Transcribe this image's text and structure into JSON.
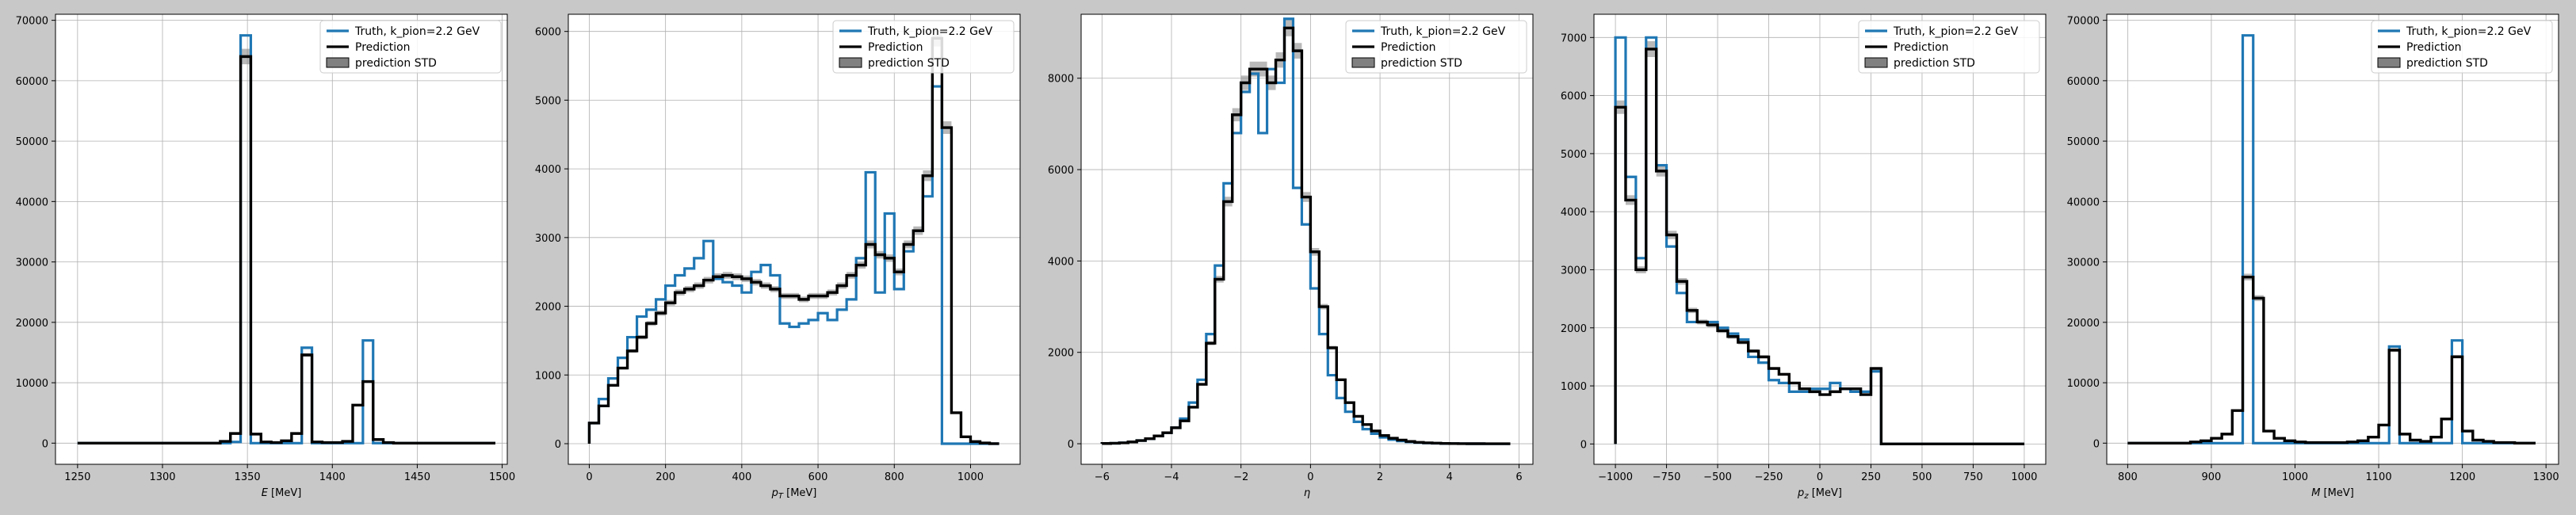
{
  "chart_data": [
    {
      "type": "step-histogram",
      "xlabel": "E [MeV]",
      "xlim": [
        1237,
        1503
      ],
      "ylim": [
        -3500,
        71000
      ],
      "xticks": [
        1250,
        1300,
        1350,
        1400,
        1450,
        1500
      ],
      "yticks": [
        0,
        10000,
        20000,
        30000,
        40000,
        50000,
        60000,
        70000
      ],
      "grid": true,
      "legend_position": "top-right",
      "legend": [
        "Truth, k_pion=2.2 GeV",
        "Prediction",
        "prediction STD"
      ],
      "bin_edges_start": 1250,
      "bin_width": 6,
      "num_bins": 41,
      "series": [
        {
          "name": "Truth, k_pion=2.2 GeV",
          "color": "#1f77b4",
          "values": [
            0,
            0,
            0,
            0,
            0,
            0,
            0,
            0,
            0,
            0,
            0,
            0,
            0,
            0,
            0,
            200,
            67500,
            0,
            0,
            0,
            0,
            0,
            15800,
            0,
            0,
            0,
            0,
            0,
            17000,
            0,
            0,
            0,
            0,
            0,
            0,
            0,
            0,
            0,
            0,
            0,
            0
          ]
        },
        {
          "name": "Prediction",
          "color": "#000000",
          "values": [
            0,
            0,
            0,
            0,
            0,
            0,
            0,
            0,
            0,
            0,
            0,
            0,
            0,
            0,
            300,
            1600,
            64000,
            1500,
            200,
            100,
            400,
            1600,
            14600,
            200,
            100,
            100,
            300,
            6300,
            10200,
            600,
            100,
            0,
            0,
            0,
            0,
            0,
            0,
            0,
            0,
            0,
            0
          ]
        }
      ]
    },
    {
      "type": "step-histogram",
      "xlabel": "p_T [MeV]",
      "xlim": [
        -55,
        1130
      ],
      "ylim": [
        -300,
        6250
      ],
      "xticks": [
        0,
        200,
        400,
        600,
        800,
        1000
      ],
      "yticks": [
        0,
        1000,
        2000,
        3000,
        4000,
        5000,
        6000
      ],
      "grid": true,
      "legend_position": "top-right",
      "legend": [
        "Truth, k_pion=2.2 GeV",
        "Prediction",
        "prediction STD"
      ],
      "bin_edges_start": 0,
      "bin_width": 25,
      "num_bins": 43,
      "series": [
        {
          "name": "Truth, k_pion=2.2 GeV",
          "color": "#1f77b4",
          "values": [
            300,
            650,
            950,
            1250,
            1550,
            1850,
            1950,
            2100,
            2300,
            2450,
            2550,
            2700,
            2950,
            2400,
            2350,
            2300,
            2200,
            2500,
            2600,
            2450,
            1750,
            1700,
            1750,
            1800,
            1900,
            1800,
            1950,
            2100,
            2700,
            3950,
            2200,
            3350,
            2250,
            2800,
            3100,
            3600,
            5200,
            0,
            0,
            0,
            0,
            0,
            0
          ]
        },
        {
          "name": "Prediction",
          "color": "#000000",
          "values": [
            300,
            550,
            850,
            1100,
            1350,
            1550,
            1750,
            1900,
            2050,
            2200,
            2250,
            2300,
            2380,
            2430,
            2450,
            2430,
            2400,
            2350,
            2300,
            2250,
            2150,
            2150,
            2100,
            2150,
            2150,
            2200,
            2300,
            2450,
            2600,
            2900,
            2750,
            2700,
            2500,
            2900,
            3100,
            3900,
            5900,
            4600,
            450,
            100,
            30,
            10,
            0
          ]
        }
      ]
    },
    {
      "type": "step-histogram",
      "xlabel": "η",
      "xlim": [
        -6.6,
        6.4
      ],
      "ylim": [
        -450,
        9400
      ],
      "xticks": [
        -6,
        -4,
        -2,
        0,
        2,
        4,
        6
      ],
      "yticks": [
        0,
        2000,
        4000,
        6000,
        8000
      ],
      "grid": true,
      "legend_position": "top-right",
      "legend": [
        "Truth, k_pion=2.2 GeV",
        "Prediction",
        "prediction STD"
      ],
      "bin_edges_start": -6,
      "bin_width": 0.25,
      "num_bins": 47,
      "series": [
        {
          "name": "Truth, k_pion=2.2 GeV",
          "color": "#1f77b4",
          "values": [
            5,
            10,
            20,
            40,
            70,
            110,
            170,
            240,
            350,
            550,
            900,
            1400,
            2400,
            3900,
            5700,
            6800,
            7700,
            8100,
            6800,
            8200,
            7900,
            9300,
            5600,
            4800,
            3400,
            2400,
            1500,
            1000,
            700,
            480,
            320,
            220,
            140,
            90,
            60,
            40,
            25,
            15,
            10,
            5,
            3,
            2,
            1,
            1,
            0,
            0,
            0
          ]
        },
        {
          "name": "Prediction",
          "color": "#000000",
          "values": [
            5,
            10,
            20,
            40,
            70,
            110,
            170,
            240,
            350,
            500,
            800,
            1300,
            2200,
            3600,
            5300,
            7200,
            7900,
            8200,
            8200,
            7900,
            8400,
            9100,
            8600,
            5400,
            4200,
            3000,
            2100,
            1400,
            900,
            600,
            420,
            280,
            180,
            120,
            80,
            50,
            30,
            20,
            12,
            7,
            4,
            2,
            1,
            1,
            0,
            0,
            0
          ]
        }
      ]
    },
    {
      "type": "step-histogram",
      "xlabel": "p_z [MeV]",
      "xlim": [
        -1105,
        1105
      ],
      "ylim": [
        -350,
        7400
      ],
      "xticks": [
        -1000,
        -750,
        -500,
        -250,
        0,
        250,
        500,
        750,
        1000
      ],
      "yticks": [
        0,
        1000,
        2000,
        3000,
        4000,
        5000,
        6000,
        7000
      ],
      "grid": true,
      "legend_position": "top-right",
      "legend": [
        "Truth, k_pion=2.2 GeV",
        "Prediction",
        "prediction STD"
      ],
      "bin_edges_start": -1000,
      "bin_width": 50,
      "num_bins": 40,
      "series": [
        {
          "name": "Truth, k_pion=2.2 GeV",
          "color": "#1f77b4",
          "values": [
            7000,
            4600,
            3200,
            7000,
            4800,
            3400,
            2600,
            2100,
            2100,
            2100,
            2000,
            1900,
            1800,
            1500,
            1400,
            1100,
            1050,
            900,
            900,
            950,
            950,
            1050,
            950,
            900,
            900,
            1250,
            0,
            0,
            0,
            0,
            0,
            0,
            0,
            0,
            0,
            0,
            0,
            0,
            0,
            0
          ]
        },
        {
          "name": "Prediction",
          "color": "#000000",
          "values": [
            5800,
            4200,
            3000,
            6800,
            4700,
            3600,
            2800,
            2300,
            2100,
            2050,
            1950,
            1850,
            1750,
            1600,
            1500,
            1300,
            1200,
            1050,
            950,
            900,
            850,
            900,
            950,
            950,
            850,
            1300,
            0,
            0,
            0,
            0,
            0,
            0,
            0,
            0,
            0,
            0,
            0,
            0,
            0,
            0
          ]
        }
      ]
    },
    {
      "type": "step-histogram",
      "xlabel": "M [MeV]",
      "xlim": [
        775,
        1315
      ],
      "ylim": [
        -3500,
        71000
      ],
      "xticks": [
        800,
        900,
        1000,
        1100,
        1200,
        1300
      ],
      "yticks": [
        0,
        10000,
        20000,
        30000,
        40000,
        50000,
        60000,
        70000
      ],
      "grid": true,
      "legend_position": "top-right",
      "legend": [
        "Truth, k_pion=2.2 GeV",
        "Prediction",
        "prediction STD"
      ],
      "bin_edges_start": 800,
      "bin_width": 12.5,
      "num_bins": 39,
      "series": [
        {
          "name": "Truth, k_pion=2.2 GeV",
          "color": "#1f77b4",
          "values": [
            0,
            0,
            0,
            0,
            0,
            0,
            0,
            0,
            0,
            0,
            0,
            67500,
            0,
            0,
            0,
            0,
            0,
            0,
            0,
            0,
            0,
            0,
            0,
            0,
            0,
            16000,
            0,
            0,
            0,
            0,
            0,
            17000,
            0,
            0,
            0,
            0,
            0,
            0,
            0
          ]
        },
        {
          "name": "Prediction",
          "color": "#000000",
          "values": [
            0,
            0,
            0,
            0,
            0,
            0,
            200,
            400,
            800,
            1500,
            5400,
            27500,
            24000,
            2000,
            800,
            400,
            200,
            100,
            100,
            100,
            100,
            200,
            400,
            1000,
            3000,
            15400,
            1500,
            500,
            300,
            1000,
            4000,
            14300,
            2000,
            500,
            300,
            100,
            100,
            0,
            0
          ]
        }
      ]
    }
  ]
}
